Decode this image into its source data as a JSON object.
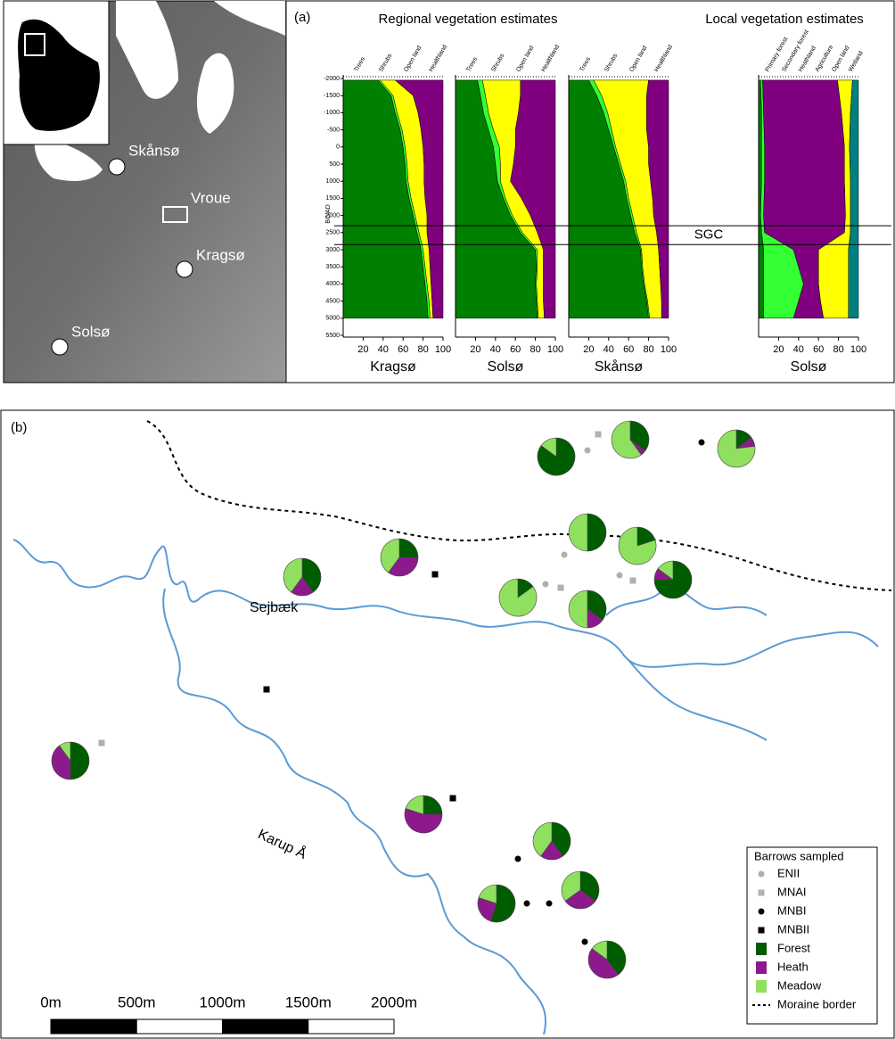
{
  "map_panel": {
    "places": [
      "Skånsø",
      "Vroue",
      "Kragsø",
      "Solsø"
    ]
  },
  "panel_a": {
    "label": "(a)",
    "regional_title": "Regional vegetation estimates",
    "local_title": "Local vegetation estimates",
    "y_label": "BC/AD",
    "ylim": [
      -2000,
      5500
    ],
    "yticks": [
      -2000,
      -1500,
      -1000,
      -500,
      0,
      500,
      1000,
      1500,
      2000,
      2500,
      3000,
      3500,
      4000,
      4500,
      5000,
      5500
    ],
    "xlim": [
      0,
      100
    ],
    "xticks": [
      20,
      40,
      60,
      80,
      100
    ],
    "event_label": "SGC",
    "event_lines": [
      2300,
      2850
    ],
    "diagrams": [
      {
        "title": "Kragsø",
        "times": [
          -1950,
          -1500,
          -1000,
          -500,
          0,
          500,
          1000,
          1500,
          2000,
          2500,
          3000,
          3500,
          4000,
          4500,
          5000
        ],
        "series": [
          {
            "name": "Trees",
            "color": "#008000",
            "values": [
              35,
              48,
              52,
              57,
              60,
              62,
              63,
              66,
              70,
              74,
              78,
              80,
              82,
              84,
              85
            ]
          },
          {
            "name": "Shrubs",
            "color": "#33ff33",
            "values": [
              2,
              2,
              2,
              2,
              2,
              2,
              2,
              2,
              2,
              2,
              2,
              2,
              2,
              2,
              2
            ]
          },
          {
            "name": "Open land",
            "color": "#ffff00",
            "values": [
              15,
              20,
              21,
              19,
              18,
              17,
              16,
              14,
              12,
              8,
              6,
              5,
              4,
              3,
              3
            ]
          },
          {
            "name": "Healthland",
            "color": "#800080",
            "values": [
              48,
              30,
              25,
              22,
              20,
              19,
              19,
              18,
              16,
              16,
              14,
              13,
              12,
              11,
              10
            ]
          }
        ]
      },
      {
        "title": "Solsø",
        "times": [
          -1950,
          -1500,
          -1000,
          -500,
          0,
          500,
          1000,
          1500,
          2000,
          2500,
          3000,
          3500,
          4000,
          4500,
          5000
        ],
        "series": [
          {
            "name": "Trees",
            "color": "#008000",
            "values": [
              22,
              25,
              28,
              33,
              38,
              40,
              42,
              48,
              55,
              65,
              80,
              81,
              80,
              81,
              82
            ]
          },
          {
            "name": "Shrubs",
            "color": "#33ff33",
            "values": [
              5,
              5,
              5,
              5,
              6,
              5,
              3,
              2,
              2,
              2,
              2,
              1,
              1,
              1,
              1
            ]
          },
          {
            "name": "Open land",
            "color": "#ffff00",
            "values": [
              38,
              35,
              30,
              22,
              16,
              13,
              10,
              16,
              18,
              15,
              6,
              6,
              7,
              6,
              6
            ]
          },
          {
            "name": "Healthland",
            "color": "#800080",
            "values": [
              35,
              35,
              37,
              40,
              40,
              42,
              45,
              34,
              25,
              18,
              12,
              12,
              12,
              12,
              11
            ]
          }
        ]
      },
      {
        "title": "Skånsø",
        "times": [
          -1950,
          -1500,
          -1000,
          -500,
          0,
          500,
          1000,
          1500,
          2000,
          2500,
          3000,
          3500,
          4000,
          4500,
          5000
        ],
        "series": [
          {
            "name": "Trees",
            "color": "#008000",
            "values": [
              20,
              28,
              35,
              40,
              45,
              50,
              55,
              58,
              62,
              66,
              72,
              73,
              75,
              78,
              80
            ]
          },
          {
            "name": "Shrubs",
            "color": "#33ff33",
            "values": [
              5,
              5,
              4,
              3,
              2,
              2,
              2,
              2,
              2,
              2,
              1,
              1,
              1,
              1,
              1
            ]
          },
          {
            "name": "Open land",
            "color": "#ffff00",
            "values": [
              55,
              45,
              39,
              35,
              33,
              28,
              25,
              24,
              21,
              20,
              17,
              17,
              16,
              14,
              12
            ]
          },
          {
            "name": "Healthland",
            "color": "#800080",
            "values": [
              20,
              22,
              22,
              22,
              20,
              20,
              18,
              16,
              15,
              12,
              10,
              9,
              8,
              7,
              7
            ]
          }
        ]
      },
      {
        "title": "Solsø",
        "times": [
          -1950,
          -1000,
          0,
          1000,
          2000,
          2500,
          3000,
          3500,
          4000,
          4500,
          5000
        ],
        "series": [
          {
            "name": "Primary forest",
            "color": "#008000",
            "values": [
              2,
              3,
              3,
              3,
              2,
              3,
              5,
              5,
              5,
              5,
              5
            ]
          },
          {
            "name": "Secondary forest",
            "color": "#33ff33",
            "values": [
              2,
              2,
              3,
              3,
              3,
              3,
              30,
              35,
              40,
              35,
              30
            ]
          },
          {
            "name": "Heathland",
            "color": "#800080",
            "values": [
              75,
              78,
              80,
              80,
              82,
              80,
              25,
              20,
              15,
              22,
              30
            ]
          },
          {
            "name": "Agriculture",
            "color": "#ff8000",
            "values": [
              0,
              0,
              0,
              0,
              0,
              0,
              0,
              0,
              0,
              0,
              0
            ]
          },
          {
            "name": "Open land",
            "color": "#ffff00",
            "values": [
              15,
              9,
              5,
              6,
              5,
              6,
              30,
              30,
              30,
              28,
              25
            ]
          },
          {
            "name": "Wetland",
            "color": "#008080",
            "values": [
              6,
              8,
              9,
              8,
              8,
              8,
              10,
              10,
              10,
              10,
              10
            ]
          }
        ]
      }
    ]
  },
  "panel_b": {
    "label": "(b)",
    "rivers": [
      "Sejbæk",
      "Karup Å"
    ],
    "scale_labels": [
      "0m",
      "500m",
      "1000m",
      "1500m",
      "2000m"
    ],
    "legend": {
      "title": "Barrows sampled",
      "items": [
        "ENII",
        "MNAI",
        "MNBI",
        "MNBII",
        "Forest",
        "Heath",
        "Meadow",
        "Moraine border"
      ]
    },
    "pie_colors": [
      "#005c00",
      "#8c1a8c",
      "#90e060"
    ],
    "pies": [
      [
        85,
        0,
        15
      ],
      [
        35,
        5,
        60
      ],
      [
        15,
        8,
        77
      ],
      [
        25,
        35,
        40
      ],
      [
        50,
        0,
        50
      ],
      [
        20,
        0,
        80
      ],
      [
        75,
        10,
        15
      ],
      [
        15,
        0,
        85
      ],
      [
        35,
        15,
        50
      ],
      [
        40,
        20,
        40
      ],
      [
        50,
        40,
        10
      ],
      [
        25,
        55,
        20
      ],
      [
        40,
        20,
        40
      ],
      [
        35,
        30,
        35
      ],
      [
        55,
        25,
        20
      ],
      [
        40,
        45,
        15
      ]
    ]
  }
}
